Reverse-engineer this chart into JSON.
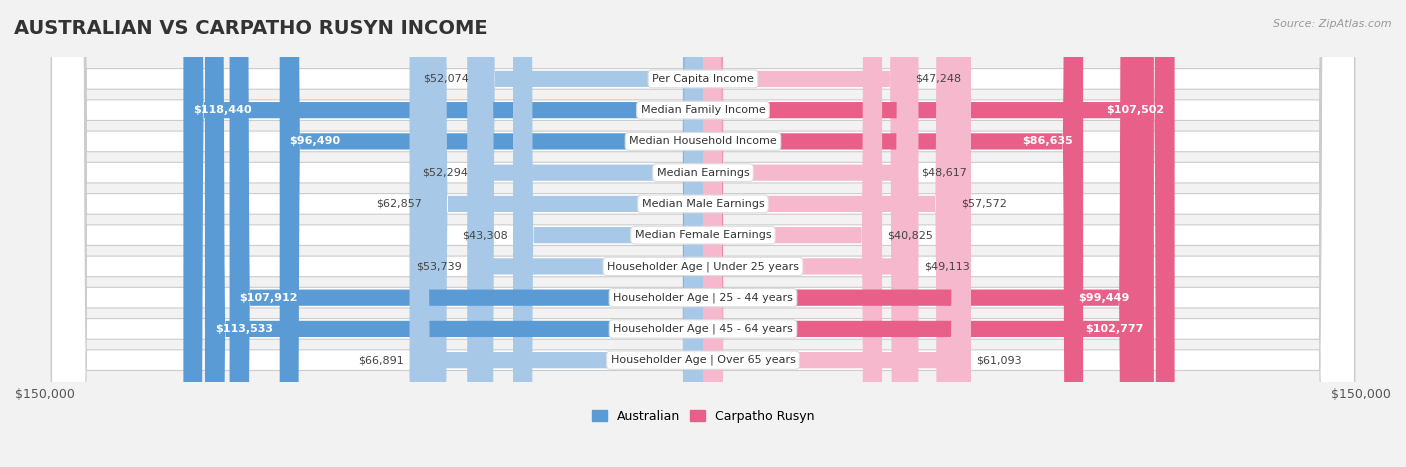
{
  "title": "AUSTRALIAN VS CARPATHO RUSYN INCOME",
  "source": "Source: ZipAtlas.com",
  "categories": [
    "Per Capita Income",
    "Median Family Income",
    "Median Household Income",
    "Median Earnings",
    "Median Male Earnings",
    "Median Female Earnings",
    "Householder Age | Under 25 years",
    "Householder Age | 25 - 44 years",
    "Householder Age | 45 - 64 years",
    "Householder Age | Over 65 years"
  ],
  "australian_values": [
    52074,
    118440,
    96490,
    52294,
    62857,
    43308,
    53739,
    107912,
    113533,
    66891
  ],
  "carpatho_rusyn_values": [
    47248,
    107502,
    86635,
    48617,
    57572,
    40825,
    49113,
    99449,
    102777,
    61093
  ],
  "max_value": 150000,
  "australian_color_light": "#a8c8e8",
  "australian_color_dark": "#5b9bd5",
  "carpatho_rusyn_color_light": "#f5b8cc",
  "carpatho_rusyn_color_dark": "#e8608a",
  "bar_height": 0.52,
  "background_color": "#f2f2f2",
  "row_bg_color": "#ffffff",
  "label_color_white": "#ffffff",
  "label_color_dark": "#444444",
  "title_fontsize": 14,
  "source_fontsize": 8,
  "bar_label_fontsize": 8,
  "cat_label_fontsize": 8,
  "legend_fontsize": 9,
  "threshold_dark": 75000
}
